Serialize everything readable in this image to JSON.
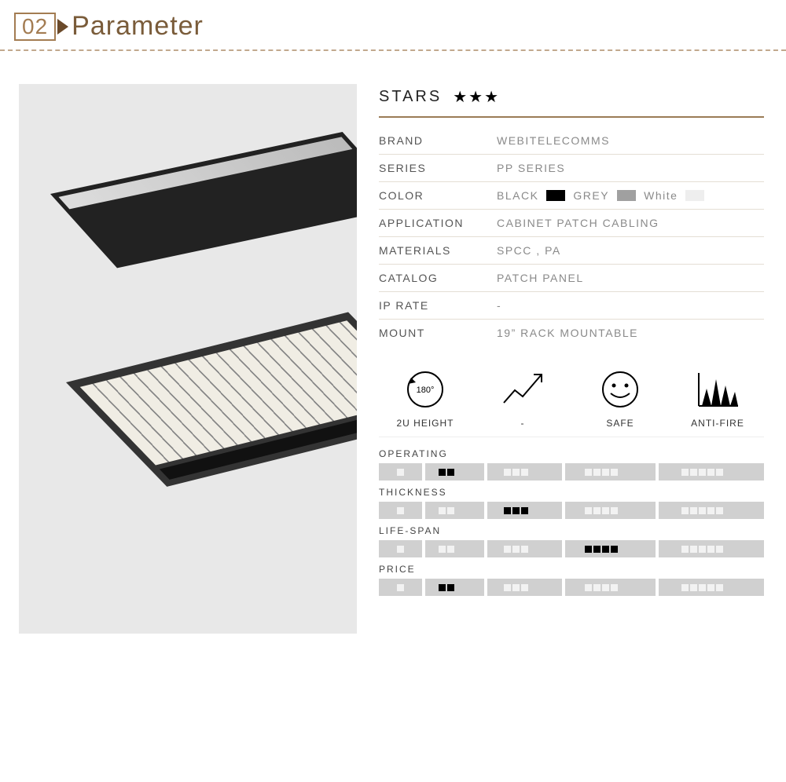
{
  "header": {
    "number": "02",
    "title": "Parameter"
  },
  "stars": {
    "label": "STARS",
    "count": 3,
    "glyph": "★"
  },
  "specs": [
    {
      "label": "BRAND",
      "value": "WEBITELECOMMS"
    },
    {
      "label": "SERIES",
      "value": "PP SERIES"
    },
    {
      "label": "COLOR",
      "colors": [
        {
          "name": "BLACK",
          "hex": "#000000"
        },
        {
          "name": "GREY",
          "hex": "#a0a0a0"
        },
        {
          "name": "White",
          "hex": "#eeeeee"
        }
      ]
    },
    {
      "label": "APPLICATION",
      "value": "CABINET PATCH CABLING"
    },
    {
      "label": "MATERIALS",
      "value": "SPCC , PA"
    },
    {
      "label": "CATALOG",
      "value": "PATCH PANEL"
    },
    {
      "label": "IP RATE",
      "value": "-"
    },
    {
      "label": "MOUNT",
      "value": "19”  RACK MOUNTABLE"
    }
  ],
  "features": [
    {
      "label": "2U HEIGHT",
      "icon": "rotate",
      "badge": "180°"
    },
    {
      "label": "-",
      "icon": "trend"
    },
    {
      "label": "SAFE",
      "icon": "smile"
    },
    {
      "label": "ANTI-FIRE",
      "icon": "peaks"
    }
  ],
  "ratings": {
    "segments": [
      1,
      2,
      3,
      4,
      5
    ],
    "seg_widths": [
      56,
      76,
      96,
      116,
      136
    ],
    "seg_bg": "#d0d0d0",
    "empty_dot_color": "#f2f2f2",
    "filled_dot_color": "#000000",
    "items": [
      {
        "label": "OPERATING",
        "filled_segment": 2
      },
      {
        "label": "THICKNESS",
        "filled_segment": 3
      },
      {
        "label": "LIFE-SPAN",
        "filled_segment": 4
      },
      {
        "label": "PRICE",
        "filled_segment": 2
      }
    ]
  },
  "colors": {
    "accent": "#a37c52",
    "accent_dark": "#6b4a2a",
    "divider": "#9a7b56"
  }
}
